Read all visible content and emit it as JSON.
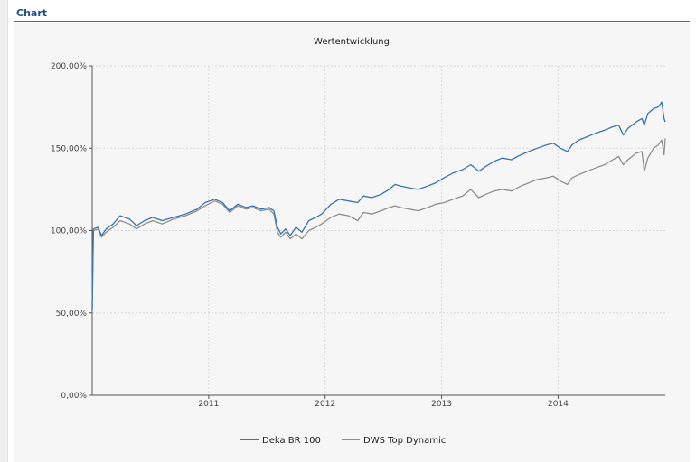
{
  "section": {
    "title": "Chart"
  },
  "colors": {
    "series_1": "#3a74ad",
    "series_2": "#8e8e8e",
    "panel_bg": "#f6f6f6",
    "section_title": "#1f4e8c"
  },
  "chart_data": {
    "type": "line",
    "title": "Wertentwicklung",
    "xlabel": "",
    "ylabel": "",
    "xlim": [
      2010.0,
      2014.92
    ],
    "ylim": [
      0,
      200
    ],
    "x_ticks": [
      {
        "value": 2011,
        "label": "2011"
      },
      {
        "value": 2012,
        "label": "2012"
      },
      {
        "value": 2013,
        "label": "2013"
      },
      {
        "value": 2014,
        "label": "2014"
      }
    ],
    "y_ticks": [
      {
        "value": 0,
        "label": "0,00%"
      },
      {
        "value": 50,
        "label": "50,00%"
      },
      {
        "value": 100,
        "label": "100,00%"
      },
      {
        "value": 150,
        "label": "150,00%"
      },
      {
        "value": 200,
        "label": "200,00%"
      }
    ],
    "grid": true,
    "legend_position": "bottom-center",
    "series": [
      {
        "name": "Deka BR 100",
        "color": "#3a74ad",
        "points": [
          [
            2010.0,
            52
          ],
          [
            2010.01,
            101
          ],
          [
            2010.05,
            102
          ],
          [
            2010.08,
            97
          ],
          [
            2010.12,
            101
          ],
          [
            2010.18,
            104
          ],
          [
            2010.24,
            109
          ],
          [
            2010.32,
            107
          ],
          [
            2010.38,
            103
          ],
          [
            2010.45,
            106
          ],
          [
            2010.52,
            108
          ],
          [
            2010.6,
            106
          ],
          [
            2010.7,
            108
          ],
          [
            2010.8,
            110
          ],
          [
            2010.9,
            113
          ],
          [
            2010.97,
            117
          ],
          [
            2011.05,
            119
          ],
          [
            2011.12,
            117
          ],
          [
            2011.18,
            112
          ],
          [
            2011.25,
            116
          ],
          [
            2011.32,
            114
          ],
          [
            2011.38,
            115
          ],
          [
            2011.45,
            113
          ],
          [
            2011.52,
            114
          ],
          [
            2011.56,
            112
          ],
          [
            2011.59,
            102
          ],
          [
            2011.62,
            98
          ],
          [
            2011.66,
            101
          ],
          [
            2011.7,
            97
          ],
          [
            2011.75,
            102
          ],
          [
            2011.8,
            99
          ],
          [
            2011.86,
            106
          ],
          [
            2011.92,
            108
          ],
          [
            2011.97,
            110
          ],
          [
            2012.05,
            116
          ],
          [
            2012.12,
            119
          ],
          [
            2012.2,
            118
          ],
          [
            2012.28,
            117
          ],
          [
            2012.33,
            121
          ],
          [
            2012.4,
            120
          ],
          [
            2012.48,
            122
          ],
          [
            2012.55,
            125
          ],
          [
            2012.6,
            128
          ],
          [
            2012.65,
            127
          ],
          [
            2012.72,
            126
          ],
          [
            2012.8,
            125
          ],
          [
            2012.88,
            127
          ],
          [
            2012.95,
            129
          ],
          [
            2013.02,
            132
          ],
          [
            2013.1,
            135
          ],
          [
            2013.18,
            137
          ],
          [
            2013.25,
            140
          ],
          [
            2013.32,
            136
          ],
          [
            2013.38,
            139
          ],
          [
            2013.45,
            142
          ],
          [
            2013.52,
            144
          ],
          [
            2013.6,
            143
          ],
          [
            2013.68,
            146
          ],
          [
            2013.75,
            148
          ],
          [
            2013.82,
            150
          ],
          [
            2013.9,
            152
          ],
          [
            2013.96,
            153
          ],
          [
            2014.02,
            150
          ],
          [
            2014.08,
            148
          ],
          [
            2014.12,
            152
          ],
          [
            2014.18,
            155
          ],
          [
            2014.25,
            157
          ],
          [
            2014.32,
            159
          ],
          [
            2014.4,
            161
          ],
          [
            2014.47,
            163
          ],
          [
            2014.52,
            164
          ],
          [
            2014.56,
            158
          ],
          [
            2014.6,
            162
          ],
          [
            2014.67,
            166
          ],
          [
            2014.72,
            168
          ],
          [
            2014.74,
            164
          ],
          [
            2014.77,
            171
          ],
          [
            2014.82,
            174
          ],
          [
            2014.86,
            175
          ],
          [
            2014.89,
            178
          ],
          [
            2014.91,
            168
          ],
          [
            2014.92,
            166
          ]
        ]
      },
      {
        "name": "DWS Top Dynamic",
        "color": "#8e8e8e",
        "points": [
          [
            2010.0,
            52
          ],
          [
            2010.01,
            100
          ],
          [
            2010.05,
            101
          ],
          [
            2010.08,
            96
          ],
          [
            2010.12,
            99
          ],
          [
            2010.18,
            102
          ],
          [
            2010.24,
            106
          ],
          [
            2010.32,
            104
          ],
          [
            2010.38,
            101
          ],
          [
            2010.45,
            104
          ],
          [
            2010.52,
            106
          ],
          [
            2010.6,
            104
          ],
          [
            2010.7,
            107
          ],
          [
            2010.8,
            109
          ],
          [
            2010.9,
            112
          ],
          [
            2010.97,
            115
          ],
          [
            2011.05,
            118
          ],
          [
            2011.12,
            116
          ],
          [
            2011.18,
            111
          ],
          [
            2011.25,
            115
          ],
          [
            2011.32,
            113
          ],
          [
            2011.38,
            114
          ],
          [
            2011.45,
            112
          ],
          [
            2011.52,
            113
          ],
          [
            2011.56,
            110
          ],
          [
            2011.59,
            99
          ],
          [
            2011.62,
            96
          ],
          [
            2011.66,
            99
          ],
          [
            2011.7,
            95
          ],
          [
            2011.75,
            98
          ],
          [
            2011.8,
            95
          ],
          [
            2011.86,
            100
          ],
          [
            2011.92,
            102
          ],
          [
            2011.97,
            104
          ],
          [
            2012.05,
            108
          ],
          [
            2012.12,
            110
          ],
          [
            2012.2,
            109
          ],
          [
            2012.28,
            106
          ],
          [
            2012.33,
            111
          ],
          [
            2012.4,
            110
          ],
          [
            2012.48,
            112
          ],
          [
            2012.55,
            114
          ],
          [
            2012.6,
            115
          ],
          [
            2012.65,
            114
          ],
          [
            2012.72,
            113
          ],
          [
            2012.8,
            112
          ],
          [
            2012.88,
            114
          ],
          [
            2012.95,
            116
          ],
          [
            2013.02,
            117
          ],
          [
            2013.1,
            119
          ],
          [
            2013.18,
            121
          ],
          [
            2013.25,
            125
          ],
          [
            2013.32,
            120
          ],
          [
            2013.38,
            122
          ],
          [
            2013.45,
            124
          ],
          [
            2013.52,
            125
          ],
          [
            2013.6,
            124
          ],
          [
            2013.68,
            127
          ],
          [
            2013.75,
            129
          ],
          [
            2013.82,
            131
          ],
          [
            2013.9,
            132
          ],
          [
            2013.96,
            133
          ],
          [
            2014.02,
            130
          ],
          [
            2014.08,
            128
          ],
          [
            2014.12,
            132
          ],
          [
            2014.18,
            134
          ],
          [
            2014.25,
            136
          ],
          [
            2014.32,
            138
          ],
          [
            2014.4,
            140
          ],
          [
            2014.47,
            143
          ],
          [
            2014.52,
            145
          ],
          [
            2014.56,
            140
          ],
          [
            2014.6,
            143
          ],
          [
            2014.67,
            147
          ],
          [
            2014.72,
            148
          ],
          [
            2014.74,
            136
          ],
          [
            2014.77,
            144
          ],
          [
            2014.82,
            150
          ],
          [
            2014.86,
            152
          ],
          [
            2014.89,
            155
          ],
          [
            2014.91,
            146
          ],
          [
            2014.92,
            156
          ]
        ]
      }
    ]
  }
}
